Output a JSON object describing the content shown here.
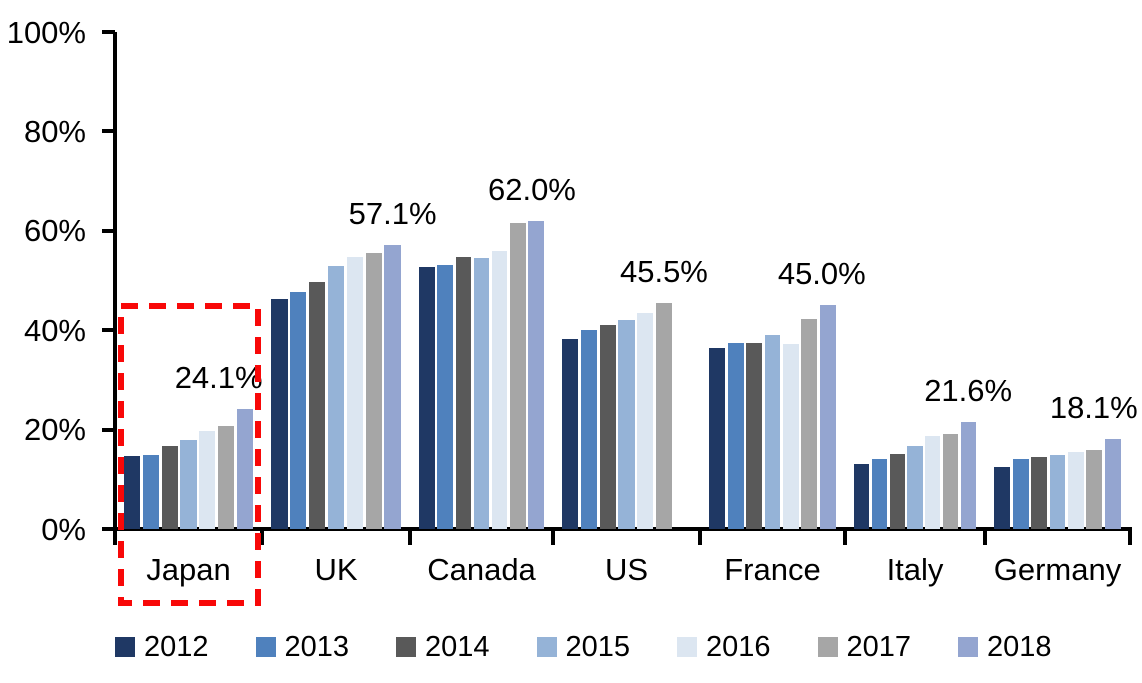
{
  "chart_data": {
    "type": "bar",
    "title": "",
    "xlabel": "",
    "ylabel": "",
    "ylim": [
      0,
      100
    ],
    "grid": false,
    "y_ticks": [
      {
        "label": "0%",
        "value": 0
      },
      {
        "label": "20%",
        "value": 20
      },
      {
        "label": "40%",
        "value": 40
      },
      {
        "label": "60%",
        "value": 60
      },
      {
        "label": "80%",
        "value": 80
      },
      {
        "label": "100%",
        "value": 100
      }
    ],
    "categories": [
      "Japan",
      "UK",
      "Canada",
      "US",
      "France",
      "Italy",
      "Germany"
    ],
    "series": [
      {
        "name": "2012",
        "color": "#1F3864",
        "values": [
          14.7,
          46.2,
          52.8,
          38.2,
          36.4,
          13.0,
          12.4
        ]
      },
      {
        "name": "2013",
        "color": "#4F81BD",
        "values": [
          14.8,
          47.6,
          53.2,
          40.0,
          37.5,
          14.0,
          14.0
        ]
      },
      {
        "name": "2014",
        "color": "#595959",
        "values": [
          16.6,
          49.7,
          54.7,
          41.0,
          37.5,
          15.1,
          14.4
        ]
      },
      {
        "name": "2015",
        "color": "#95B3D7",
        "values": [
          17.9,
          53.0,
          54.5,
          42.1,
          39.0,
          16.8,
          14.8
        ]
      },
      {
        "name": "2016",
        "color": "#DCE6F1",
        "values": [
          19.7,
          54.7,
          56.0,
          43.5,
          37.2,
          18.8,
          15.5
        ]
      },
      {
        "name": "2017",
        "color": "#A6A6A6",
        "values": [
          20.8,
          55.6,
          61.5,
          45.5,
          42.2,
          19.1,
          15.9
        ]
      },
      {
        "name": "2018",
        "color": "#94A5D0",
        "values": [
          24.1,
          57.1,
          62.0,
          null,
          45.0,
          21.6,
          18.1
        ]
      }
    ],
    "data_labels": [
      "24.1%",
      "57.1%",
      "62.0%",
      "45.5%",
      "45.0%",
      "21.6%",
      "18.1%"
    ],
    "legend_position": "bottom",
    "annotation": {
      "type": "dashed-rectangle",
      "highlighted_category": "Japan",
      "color": "#F80808"
    },
    "axis_color": "#000000",
    "text_color": "#000000",
    "background_color": "#FFFFFF"
  }
}
